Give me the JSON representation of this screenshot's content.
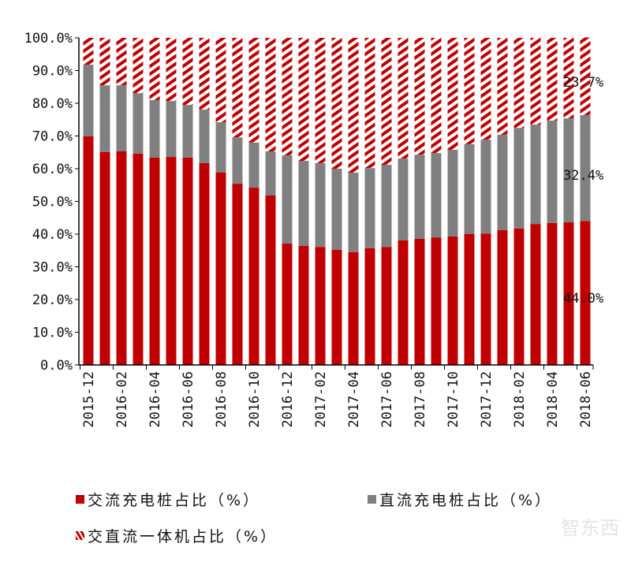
{
  "chart_data": {
    "type": "bar",
    "stacked": true,
    "categories": [
      "2015-12",
      "2016-01",
      "2016-02",
      "2016-03",
      "2016-04",
      "2016-05",
      "2016-06",
      "2016-07",
      "2016-08",
      "2016-09",
      "2016-10",
      "2016-11",
      "2016-12",
      "2017-01",
      "2017-02",
      "2017-03",
      "2017-04",
      "2017-05",
      "2017-06",
      "2017-07",
      "2017-08",
      "2017-09",
      "2017-10",
      "2017-11",
      "2017-12",
      "2018-01",
      "2018-02",
      "2018-03",
      "2018-04",
      "2018-05",
      "2018-06"
    ],
    "x_tick_labels": [
      "2015-12",
      "2016-02",
      "2016-04",
      "2016-06",
      "2016-08",
      "2016-10",
      "2016-12",
      "2017-02",
      "2017-04",
      "2017-06",
      "2017-08",
      "2017-10",
      "2017-12",
      "2018-02",
      "2018-04",
      "2018-06"
    ],
    "y_tick_labels": [
      "0.0%",
      "10.0%",
      "20.0%",
      "30.0%",
      "40.0%",
      "50.0%",
      "60.0%",
      "70.0%",
      "80.0%",
      "90.0%",
      "100.0%"
    ],
    "ylim": [
      0,
      100
    ],
    "grid": false,
    "legend_position": "bottom",
    "series": [
      {
        "name": "交流充电桩占比（%）",
        "color": "#c00000",
        "pattern": "solid",
        "values": [
          69.9,
          65.1,
          65.3,
          64.6,
          63.4,
          63.6,
          63.4,
          61.7,
          58.8,
          55.4,
          54.2,
          51.8,
          37.1,
          36.4,
          36.1,
          35.2,
          34.5,
          35.7,
          36.1,
          38.1,
          38.6,
          39.0,
          39.3,
          40.0,
          40.2,
          41.2,
          41.7,
          43.1,
          43.4,
          43.6,
          44.0
        ]
      },
      {
        "name": "直流充电桩占比（%）",
        "color": "#808080",
        "pattern": "solid",
        "values": [
          21.9,
          20.4,
          20.2,
          18.5,
          17.6,
          17.1,
          16.1,
          16.4,
          15.4,
          14.2,
          13.8,
          13.5,
          27.0,
          26.0,
          25.6,
          24.8,
          24.3,
          24.5,
          25.1,
          25.0,
          25.7,
          25.8,
          26.5,
          27.5,
          28.7,
          29.2,
          30.8,
          30.4,
          31.3,
          31.8,
          32.4
        ]
      },
      {
        "name": "交直流一体机占比（%）",
        "color": "#c00000",
        "pattern": "diagonal-hatch",
        "values": [
          8.2,
          14.5,
          14.5,
          16.9,
          19.0,
          19.3,
          20.5,
          21.9,
          25.8,
          30.4,
          32.0,
          34.7,
          35.9,
          37.6,
          38.3,
          40.0,
          41.2,
          39.8,
          38.8,
          36.9,
          35.7,
          35.2,
          34.2,
          32.5,
          31.1,
          29.6,
          27.5,
          26.5,
          25.3,
          24.6,
          23.7
        ]
      }
    ],
    "data_labels": {
      "series0_last": "44.0%",
      "series1_last": "32.4%",
      "series2_last": "23.7%"
    }
  },
  "watermark": "智东西"
}
